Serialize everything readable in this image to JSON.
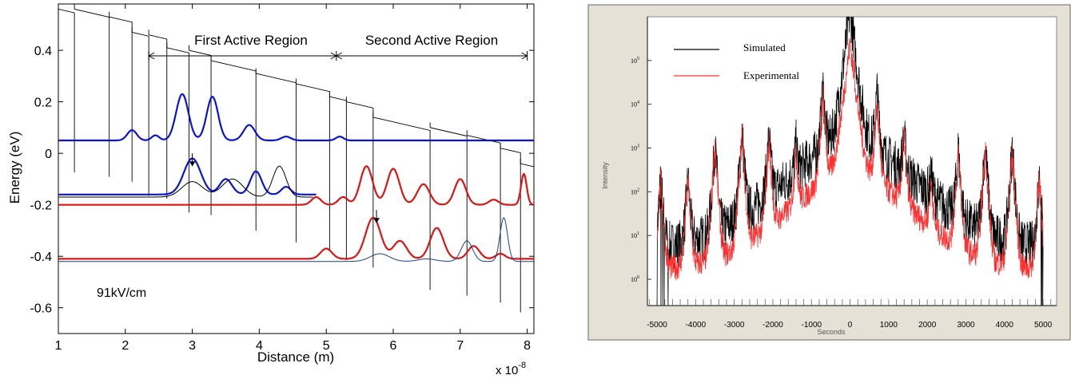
{
  "chart_data": [
    {
      "type": "line",
      "title": "",
      "xlabel": "Distance (m)",
      "x_multiplier_label": "x 10",
      "x_multiplier_exp": "-8",
      "ylabel": "Energy (eV)",
      "xlim": [
        1,
        8.1
      ],
      "ylim": [
        -0.7,
        0.58
      ],
      "x_ticks": [
        "1",
        "2",
        "3",
        "4",
        "5",
        "6",
        "7",
        "8"
      ],
      "y_ticks": [
        "-0.6",
        "-0.4",
        "-0.2",
        "0",
        "0.2",
        "0.4"
      ],
      "y_tick_values": [
        -0.6,
        -0.4,
        -0.2,
        0,
        0.2,
        0.4
      ],
      "annotations": {
        "first_region": "First Active Region",
        "second_region": "Second Active Region",
        "field": "91kV/cm"
      },
      "colors": {
        "blue": "#0a14d2",
        "red": "#dc1414",
        "navy": "#1c3f8a",
        "black": "#000000"
      },
      "conduction_band": {
        "slope_ev_per_unit": -0.06,
        "segments": [
          {
            "x0": 1.0,
            "x1": 1.24,
            "y0": -0.1,
            "top": 0.56
          },
          {
            "x0": 1.24,
            "x1": 1.76,
            "y0": 0.56,
            "top": 0.56
          },
          {
            "x0": 1.76,
            "x1": 2.1,
            "y0": 0.53,
            "top": 0.53
          },
          {
            "x0": 2.1,
            "x1": 2.35,
            "y0": 0.47,
            "top": 0.47
          },
          {
            "x0": 2.35,
            "x1": 2.62,
            "y0": 0.46,
            "top": 0.46
          },
          {
            "x0": 2.62,
            "x1": 2.95,
            "y0": 0.41,
            "top": 0.41
          },
          {
            "x0": 2.95,
            "x1": 3.28,
            "y0": 0.4,
            "top": 0.4
          },
          {
            "x0": 3.28,
            "x1": 3.95,
            "y0": 0.36,
            "top": 0.36
          },
          {
            "x0": 3.95,
            "x1": 4.55,
            "y0": 0.31,
            "top": 0.31
          },
          {
            "x0": 4.55,
            "x1": 5.05,
            "y0": 0.27,
            "top": 0.27
          },
          {
            "x0": 5.05,
            "x1": 5.3,
            "y0": 0.22,
            "top": 0.22
          },
          {
            "x0": 5.3,
            "x1": 5.7,
            "y0": 0.2,
            "top": 0.2
          },
          {
            "x0": 5.7,
            "x1": 6.55,
            "y0": 0.14,
            "top": 0.14
          },
          {
            "x0": 6.55,
            "x1": 7.1,
            "y0": 0.1,
            "top": 0.1
          },
          {
            "x0": 7.1,
            "x1": 7.6,
            "y0": 0.07,
            "top": 0.07
          },
          {
            "x0": 7.6,
            "x1": 7.9,
            "y0": 0.02,
            "top": 0.02
          },
          {
            "x0": 7.9,
            "x1": 8.1,
            "y0": -0.04,
            "top": -0.04
          }
        ]
      },
      "series": [
        {
          "color": "blue",
          "base": 0.05,
          "x0": 1.0,
          "x1": 8.1,
          "bumps": [
            [
              2.1,
              0.04,
              0.1
            ],
            [
              2.45,
              0.02,
              0.08
            ],
            [
              2.85,
              0.18,
              0.13
            ],
            [
              3.3,
              0.17,
              0.12
            ],
            [
              3.85,
              0.06,
              0.12
            ],
            [
              4.4,
              0.015,
              0.1
            ],
            [
              5.2,
              0.015,
              0.08
            ]
          ]
        },
        {
          "color": "blue",
          "base": -0.16,
          "x0": 1.0,
          "x1": 4.85,
          "slope_after": 2.7,
          "bumps": [
            [
              3.0,
              0.14,
              0.18
            ],
            [
              3.5,
              0.06,
              0.13
            ],
            [
              3.95,
              0.09,
              0.12
            ],
            [
              4.4,
              0.03,
              0.1
            ]
          ]
        },
        {
          "color": "black",
          "base": -0.17,
          "x0": 1.0,
          "x1": 4.8,
          "bumps": [
            [
              3.0,
              0.06,
              0.22
            ],
            [
              3.6,
              0.07,
              0.22
            ],
            [
              4.3,
              0.12,
              0.14
            ]
          ]
        },
        {
          "color": "red",
          "base": -0.2,
          "x0": 1.0,
          "x1": 8.1,
          "bumps": [
            [
              4.85,
              0.03,
              0.1
            ],
            [
              5.25,
              0.03,
              0.1
            ],
            [
              5.6,
              0.15,
              0.13
            ],
            [
              6.0,
              0.14,
              0.13
            ],
            [
              6.45,
              0.08,
              0.13
            ],
            [
              7.0,
              0.1,
              0.12
            ],
            [
              7.5,
              0.02,
              0.1
            ],
            [
              7.95,
              0.12,
              0.06
            ]
          ]
        },
        {
          "color": "red",
          "base": -0.41,
          "x0": 1.0,
          "x1": 8.1,
          "bumps": [
            [
              5.0,
              0.04,
              0.12
            ],
            [
              5.7,
              0.16,
              0.16
            ],
            [
              6.1,
              0.07,
              0.14
            ],
            [
              6.65,
              0.12,
              0.14
            ],
            [
              7.2,
              0.05,
              0.12
            ],
            [
              7.6,
              0.02,
              0.1
            ]
          ]
        },
        {
          "color": "navy",
          "base": -0.42,
          "x0": 1.0,
          "x1": 8.1,
          "bumps": [
            [
              5.8,
              0.03,
              0.2
            ],
            [
              6.5,
              0.01,
              0.18
            ],
            [
              7.1,
              0.08,
              0.12
            ],
            [
              7.65,
              0.17,
              0.08
            ]
          ]
        }
      ],
      "arrows": [
        {
          "x": 3.0,
          "y_from": 0.0,
          "y_to": -0.05
        },
        {
          "x": 5.75,
          "y_from": -0.22,
          "y_to": -0.27
        }
      ]
    },
    {
      "type": "line",
      "title": "",
      "xlabel": "Seconds",
      "ylabel": "Intensity",
      "yscale": "log",
      "xlim": [
        -5250,
        5350
      ],
      "ylim": [
        0.25,
        1000000
      ],
      "x_ticks": [
        "-5000",
        "-4000",
        "-3000",
        "-2000",
        "-1000",
        "0",
        "1000",
        "2000",
        "3000",
        "4000",
        "5000"
      ],
      "x_tick_values": [
        -5000,
        -4000,
        -3000,
        -2000,
        -1000,
        0,
        1000,
        2000,
        3000,
        4000,
        5000
      ],
      "y_ticks": [
        {
          "base": "10",
          "exp": "0",
          "value": 1
        },
        {
          "base": "10",
          "exp": "1",
          "value": 10
        },
        {
          "base": "10",
          "exp": "2",
          "value": 100
        },
        {
          "base": "10",
          "exp": "3",
          "value": 1000
        },
        {
          "base": "10",
          "exp": "4",
          "value": 10000
        },
        {
          "base": "10",
          "exp": "5",
          "value": 100000
        }
      ],
      "legend": [
        {
          "name": "Simulated",
          "color": "#000000"
        },
        {
          "name": "Experimental",
          "color": "#ff3030"
        }
      ],
      "legend_position": "top-left",
      "series": [
        {
          "name": "Simulated",
          "color": "#000000",
          "floor": 5,
          "noise": 0.55,
          "center_peak": 1400000,
          "peaks": [
            [
              -4900,
              200
            ],
            [
              -4200,
              200
            ],
            [
              -3500,
              1200
            ],
            [
              -2800,
              2500
            ],
            [
              -2100,
              2000
            ],
            [
              -1400,
              1000
            ],
            [
              -700,
              22000
            ],
            [
              0,
              1400000
            ],
            [
              700,
              20000
            ],
            [
              1400,
              2000
            ],
            [
              2100,
              200
            ],
            [
              2800,
              1000
            ],
            [
              3500,
              1200
            ],
            [
              4200,
              1000
            ],
            [
              4900,
              200
            ]
          ]
        },
        {
          "name": "Experimental",
          "color": "#ff3030",
          "floor": 1.6,
          "noise": 0.3,
          "center_peak": 250000,
          "peaks": [
            [
              -4900,
              200
            ],
            [
              -4200,
              200
            ],
            [
              -3500,
              1200
            ],
            [
              -2800,
              2000
            ],
            [
              -2100,
              1500
            ],
            [
              -1400,
              800
            ],
            [
              -700,
              15000
            ],
            [
              0,
              250000
            ],
            [
              700,
              10000
            ],
            [
              1400,
              2000
            ],
            [
              2100,
              160
            ],
            [
              2800,
              800
            ],
            [
              3500,
              1000
            ],
            [
              4200,
              800
            ],
            [
              4900,
              200
            ]
          ]
        }
      ]
    }
  ]
}
